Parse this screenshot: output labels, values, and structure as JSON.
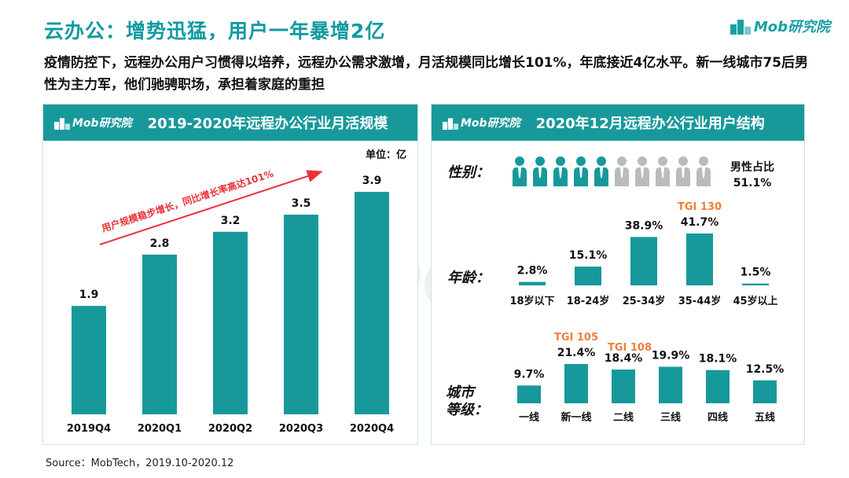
{
  "title": "云办公：增势迅猛，用户一年暴增2亿",
  "brand": "Mob研究院",
  "subtitle": "疫情防控下，远程办公用户习惯得以培养，远程办公需求激增，月活规模同比增长101%，年底接近4亿水平。新一线城市75后男性为主力军，他们驰骋职场，承担着家庭的重担",
  "source": "Source：MobTech，2019.10-2020.12",
  "watermark": "MobTech 袤博",
  "colors": {
    "teal": "#17999c",
    "gray": "#b9bcbd",
    "tgi": "#f07e3a",
    "arrow": "#e8333a"
  },
  "chart_data": [
    {
      "type": "bar",
      "title": "2019-2020年远程办公行业月活规模",
      "unit_label": "单位：亿",
      "categories": [
        "2019Q4",
        "2020Q1",
        "2020Q2",
        "2020Q3",
        "2020Q4"
      ],
      "values": [
        1.9,
        2.8,
        3.2,
        3.5,
        3.9
      ],
      "value_labels": [
        "1.9",
        "2.8",
        "3.2",
        "3.5",
        "3.9"
      ],
      "ylim": [
        0,
        4.3
      ],
      "annotation": "用户规模稳步增长，同比增长率高达101%"
    },
    {
      "type": "bar",
      "title": "2020年12月远程办公行业用户结构",
      "gender": {
        "label": "性别：",
        "male_share_label": "男性占比",
        "male_share_value": "51.1%",
        "male_icons": 5,
        "total_icons": 10
      },
      "age": {
        "label": "年龄：",
        "categories": [
          "18岁以下",
          "18-24岁",
          "25-34岁",
          "35-44岁",
          "45岁以上"
        ],
        "values": [
          2.8,
          15.1,
          38.9,
          41.7,
          1.5
        ],
        "value_labels": [
          "2.8%",
          "15.1%",
          "38.9%",
          "41.7%",
          "1.5%"
        ],
        "tgi": [
          null,
          null,
          null,
          "TGI 130",
          null
        ]
      },
      "city": {
        "label_line1": "城市",
        "label_line2": "等级：",
        "categories": [
          "一线",
          "新一线",
          "二线",
          "三线",
          "四线",
          "五线"
        ],
        "values": [
          9.7,
          21.4,
          18.4,
          19.9,
          18.1,
          12.5
        ],
        "value_labels": [
          "9.7%",
          "21.4%",
          "18.4%",
          "19.9%",
          "18.1%",
          "12.5%"
        ],
        "tgi": [
          null,
          "TGI 105",
          "TGI 108",
          null,
          null,
          null
        ]
      }
    }
  ]
}
